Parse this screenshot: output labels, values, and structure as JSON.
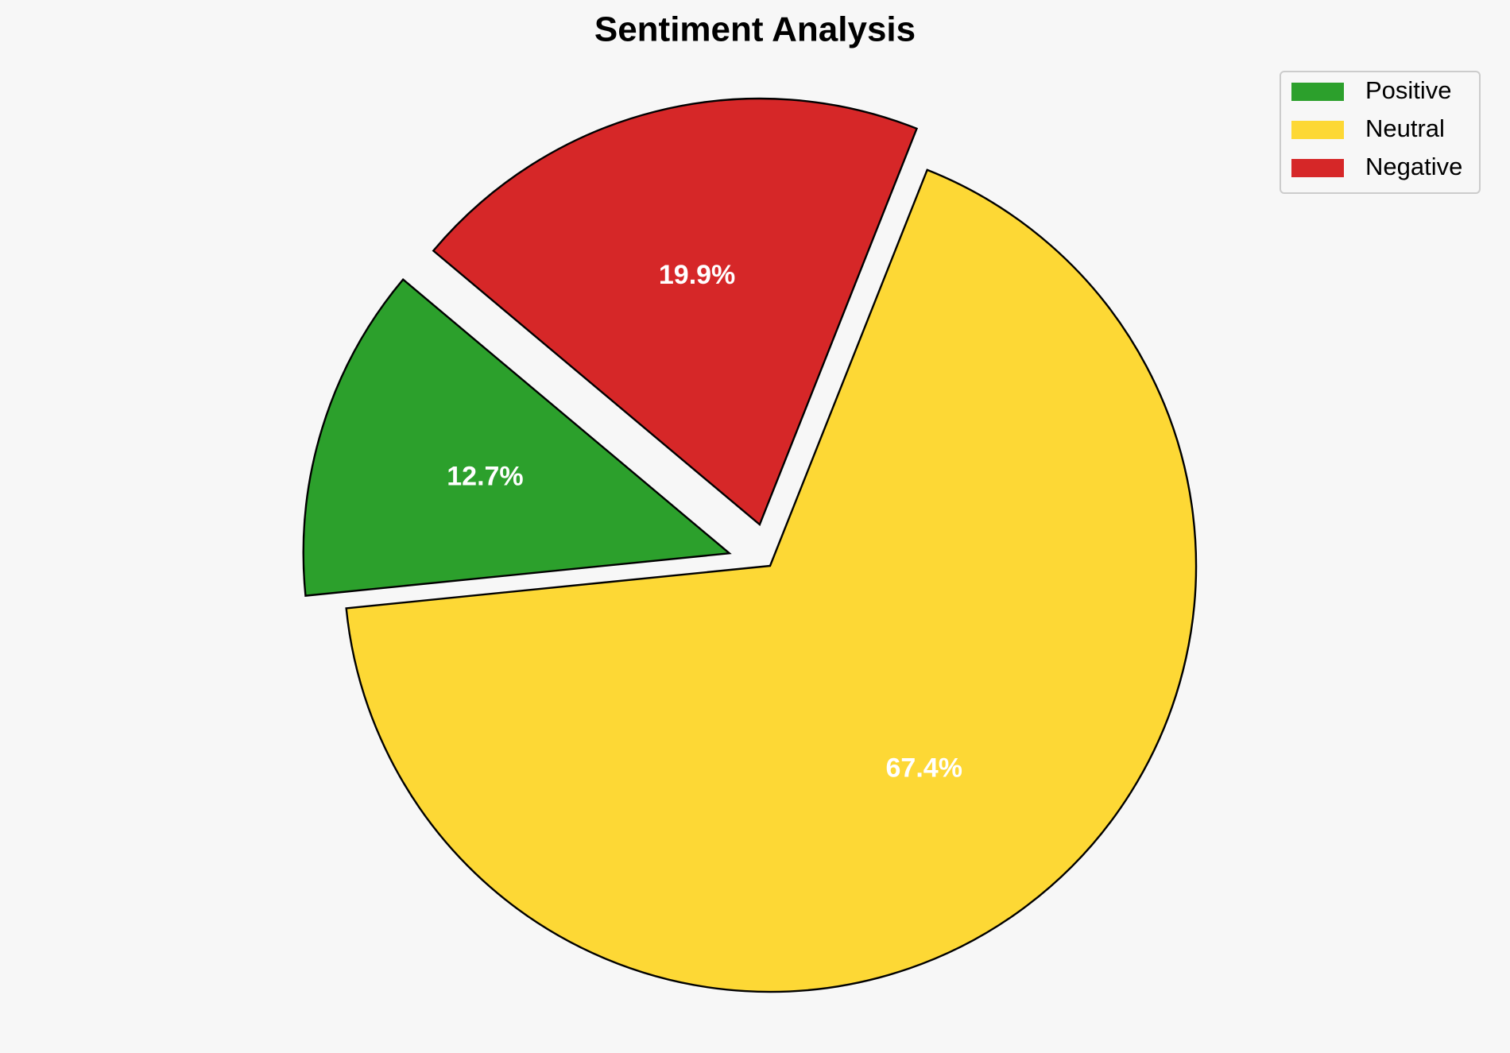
{
  "chart_data": {
    "type": "pie",
    "title": "Sentiment Analysis",
    "categories": [
      "Positive",
      "Neutral",
      "Negative"
    ],
    "values": [
      12.7,
      67.4,
      19.9
    ],
    "value_labels": [
      "12.7%",
      "67.4%",
      "19.9%"
    ],
    "colors": [
      "#2ca02c",
      "#fdd835",
      "#d62728"
    ],
    "explode": [
      0.1,
      0,
      0.1
    ],
    "legend": "upper right"
  }
}
